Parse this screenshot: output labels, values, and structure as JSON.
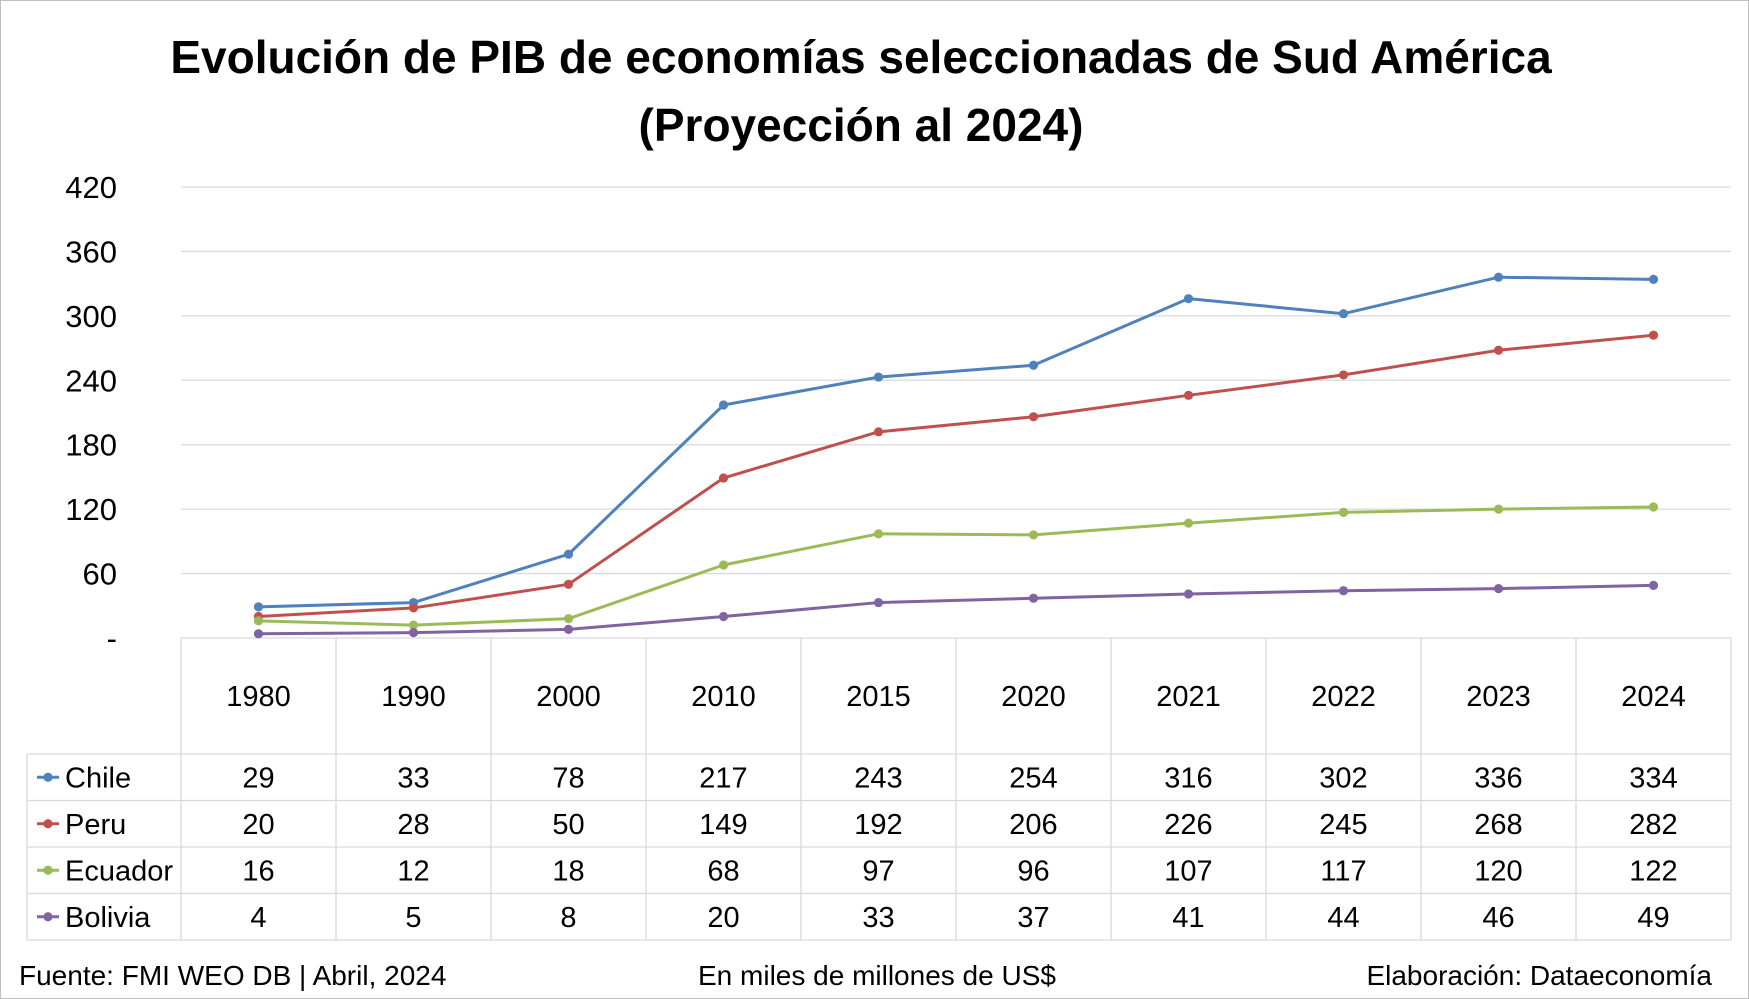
{
  "chart_data": {
    "type": "line",
    "title": "Evolución de PIB de economías seleccionadas de Sud América (Proyección al 2024)",
    "categories": [
      "1980",
      "1990",
      "2000",
      "2010",
      "2015",
      "2020",
      "2021",
      "2022",
      "2023",
      "2024"
    ],
    "y_tick_labels": [
      "-",
      "60",
      "120",
      "180",
      "240",
      "300",
      "360",
      "420"
    ],
    "ylim": [
      0,
      420
    ],
    "grid": true,
    "legend_placement": "data table below the chart",
    "series": [
      {
        "name": "Chile",
        "color": "#4f81bd",
        "values": [
          29,
          33,
          78,
          217,
          243,
          254,
          316,
          302,
          336,
          334
        ]
      },
      {
        "name": "Peru",
        "color": "#c0504d",
        "values": [
          20,
          28,
          50,
          149,
          192,
          206,
          226,
          245,
          268,
          282
        ]
      },
      {
        "name": "Ecuador",
        "color": "#9bbb59",
        "values": [
          16,
          12,
          18,
          68,
          97,
          96,
          107,
          117,
          120,
          122
        ]
      },
      {
        "name": "Bolivia",
        "color": "#8064a2",
        "values": [
          4,
          5,
          8,
          20,
          33,
          37,
          41,
          44,
          46,
          49
        ]
      }
    ]
  },
  "footer": {
    "source": "Fuente: FMI WEO DB | Abril, 2024",
    "units": "En miles de millones de US$",
    "credit": "Elaboración: Dataeconomía"
  }
}
